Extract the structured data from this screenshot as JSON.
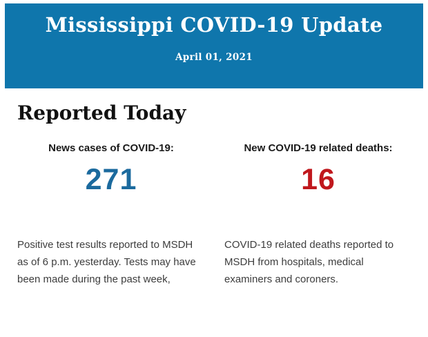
{
  "banner": {
    "title": "Mississippi COVID-19 Update",
    "date": "April 01, 2021",
    "background_color": "#0f76ac",
    "text_color": "#ffffff"
  },
  "report": {
    "heading": "Reported Today",
    "stats": [
      {
        "label": "News cases of COVID-19:",
        "value": "271",
        "value_color": "#1b6a9e",
        "description": "Positive test results reported to MSDH as of 6 p.m. yesterday. Tests may have been made during the past week,"
      },
      {
        "label": "New COVID-19 related deaths:",
        "value": "16",
        "value_color": "#c0181d",
        "description": "COVID-19 related deaths reported to MSDH from hospitals, medical examiners and coroners."
      }
    ]
  }
}
